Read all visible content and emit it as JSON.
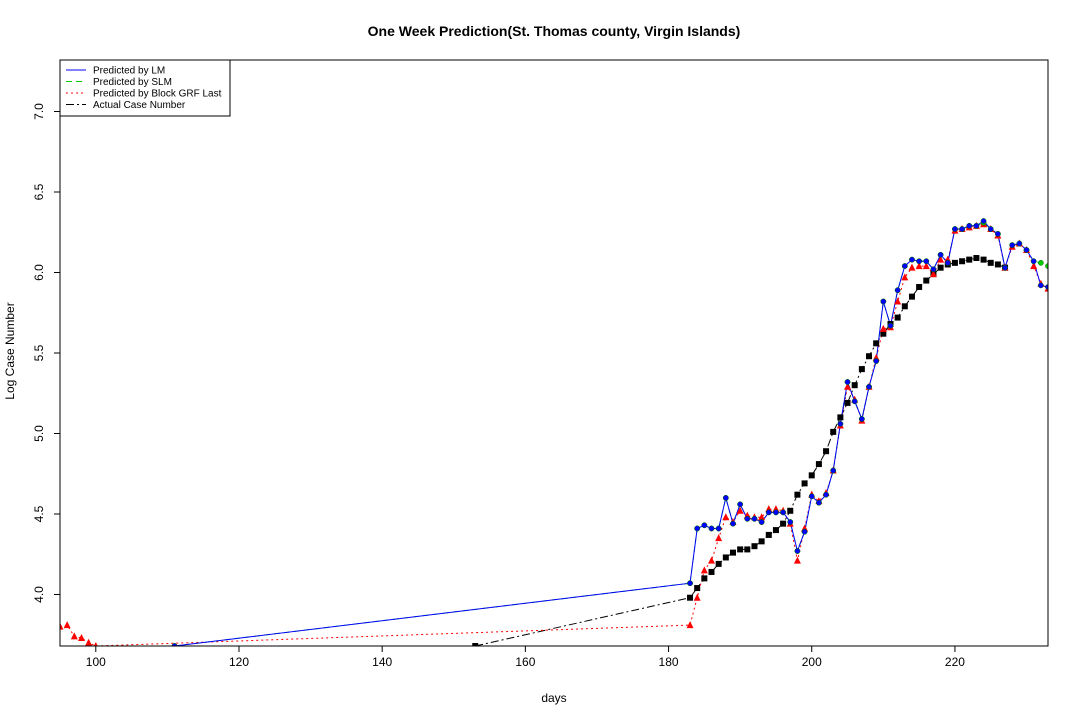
{
  "chart_data": {
    "type": "line",
    "title": "One Week Prediction(St. Thomas county, Virgin Islands)",
    "xlabel": "days",
    "ylabel": "Log Case Number",
    "xlim": [
      95,
      233
    ],
    "ylim": [
      3.68,
      7.32
    ],
    "x_ticks": [
      100,
      120,
      140,
      160,
      180,
      200,
      220
    ],
    "y_ticks": [
      4.0,
      4.5,
      5.0,
      5.5,
      6.0,
      6.5,
      7.0
    ],
    "y_tick_labels": [
      "4.0",
      "4.5",
      "5.0",
      "5.5",
      "6.0",
      "6.5",
      "7.0"
    ],
    "grid": false,
    "legend_position": "top-left",
    "legend": [
      {
        "label": "Predicted by LM",
        "color": "#0000ff",
        "dash": "solid"
      },
      {
        "label": "Predicted by SLM",
        "color": "#00cc00",
        "dash": "dashed"
      },
      {
        "label": "Predicted by Block GRF Last",
        "color": "#ff0000",
        "dash": "dotted"
      },
      {
        "label": "Actual Case Number",
        "color": "#000000",
        "dash": "dotdash"
      }
    ],
    "series": [
      {
        "name": "Predicted by LM",
        "color": "#0000ff",
        "marker": "circle",
        "x": [
          111,
          183,
          184,
          185,
          186,
          187,
          188,
          189,
          190,
          191,
          192,
          193,
          194,
          195,
          196,
          197,
          198,
          199,
          200,
          201,
          202,
          203,
          204,
          205,
          206,
          207,
          208,
          209,
          210,
          211,
          212,
          213,
          214,
          215,
          216,
          217,
          218,
          219,
          220,
          221,
          222,
          223,
          224,
          225,
          226,
          227,
          228,
          229,
          230,
          231,
          232,
          233
        ],
        "y": [
          3.68,
          4.07,
          4.41,
          4.43,
          4.41,
          4.41,
          4.6,
          4.44,
          4.56,
          4.47,
          4.47,
          4.45,
          4.51,
          4.51,
          4.51,
          4.45,
          4.27,
          4.39,
          4.61,
          4.57,
          4.62,
          4.77,
          5.06,
          5.32,
          5.2,
          5.09,
          5.29,
          5.45,
          5.82,
          5.67,
          5.89,
          6.04,
          6.08,
          6.07,
          6.07,
          6.02,
          6.11,
          6.06,
          6.27,
          6.27,
          6.29,
          6.29,
          6.32,
          6.27,
          6.24,
          6.03,
          6.17,
          6.18,
          6.14,
          6.07,
          5.92,
          5.91
        ]
      },
      {
        "name": "Predicted by SLM",
        "color": "#00cc00",
        "marker": "circle",
        "x": [
          111,
          183,
          184,
          185,
          186,
          187,
          188,
          189,
          190,
          191,
          192,
          193,
          194,
          195,
          196,
          197,
          198,
          199,
          200,
          201,
          202,
          203,
          204,
          205,
          206,
          207,
          208,
          209,
          210,
          211,
          212,
          213,
          214,
          215,
          216,
          217,
          218,
          219,
          220,
          221,
          222,
          223,
          224,
          225,
          226,
          227,
          228,
          229,
          230,
          231,
          232,
          233
        ],
        "y": [
          3.68,
          4.07,
          4.41,
          4.43,
          4.41,
          4.41,
          4.6,
          4.44,
          4.56,
          4.47,
          4.47,
          4.45,
          4.51,
          4.51,
          4.51,
          4.45,
          4.27,
          4.39,
          4.61,
          4.57,
          4.62,
          4.77,
          5.06,
          5.32,
          5.2,
          5.09,
          5.29,
          5.45,
          5.82,
          5.67,
          5.89,
          6.04,
          6.08,
          6.07,
          6.07,
          6.02,
          6.11,
          6.06,
          6.27,
          6.27,
          6.29,
          6.29,
          6.31,
          6.27,
          6.24,
          6.03,
          6.17,
          6.18,
          6.14,
          6.07,
          6.06,
          6.04
        ]
      },
      {
        "name": "Predicted by Block GRF Last",
        "color": "#ff0000",
        "marker": "triangle",
        "x": [
          95,
          96,
          97,
          98,
          99,
          100,
          183,
          184,
          185,
          186,
          187,
          188,
          189,
          190,
          191,
          192,
          193,
          194,
          195,
          196,
          197,
          198,
          199,
          200,
          201,
          202,
          203,
          204,
          205,
          206,
          207,
          208,
          209,
          210,
          211,
          212,
          213,
          214,
          215,
          216,
          217,
          218,
          219,
          220,
          221,
          222,
          223,
          224,
          225,
          226,
          227,
          228,
          229,
          230,
          231,
          232,
          233
        ],
        "y": [
          3.8,
          3.81,
          3.74,
          3.73,
          3.7,
          3.68,
          3.81,
          3.98,
          4.15,
          4.21,
          4.35,
          4.48,
          4.45,
          4.52,
          4.49,
          4.48,
          4.48,
          4.53,
          4.53,
          4.52,
          4.44,
          4.21,
          4.41,
          4.62,
          4.58,
          4.63,
          4.77,
          5.05,
          5.29,
          5.21,
          5.08,
          5.29,
          5.47,
          5.65,
          5.66,
          5.82,
          5.97,
          6.03,
          6.04,
          6.04,
          5.99,
          6.08,
          6.08,
          6.26,
          6.27,
          6.28,
          6.29,
          6.3,
          6.27,
          6.23,
          6.03,
          6.16,
          6.18,
          6.14,
          6.04,
          5.93,
          5.9
        ]
      },
      {
        "name": "Actual Case Number",
        "color": "#000000",
        "marker": "square",
        "x": [
          153,
          183,
          184,
          185,
          186,
          187,
          188,
          189,
          190,
          191,
          192,
          193,
          194,
          195,
          196,
          197,
          198,
          199,
          200,
          201,
          202,
          203,
          204,
          205,
          206,
          207,
          208,
          209,
          210,
          211,
          212,
          213,
          214,
          215,
          216,
          217,
          218,
          219,
          220,
          221,
          222,
          223,
          224,
          225,
          226,
          227
        ],
        "y": [
          3.68,
          3.98,
          4.04,
          4.1,
          4.14,
          4.19,
          4.23,
          4.26,
          4.28,
          4.28,
          4.3,
          4.33,
          4.37,
          4.4,
          4.44,
          4.52,
          4.62,
          4.69,
          4.74,
          4.81,
          4.89,
          5.01,
          5.1,
          5.19,
          5.3,
          5.4,
          5.48,
          5.56,
          5.62,
          5.68,
          5.72,
          5.79,
          5.85,
          5.91,
          5.95,
          5.99,
          6.03,
          6.05,
          6.06,
          6.07,
          6.08,
          6.09,
          6.08,
          6.06,
          6.05,
          6.03
        ]
      }
    ]
  }
}
